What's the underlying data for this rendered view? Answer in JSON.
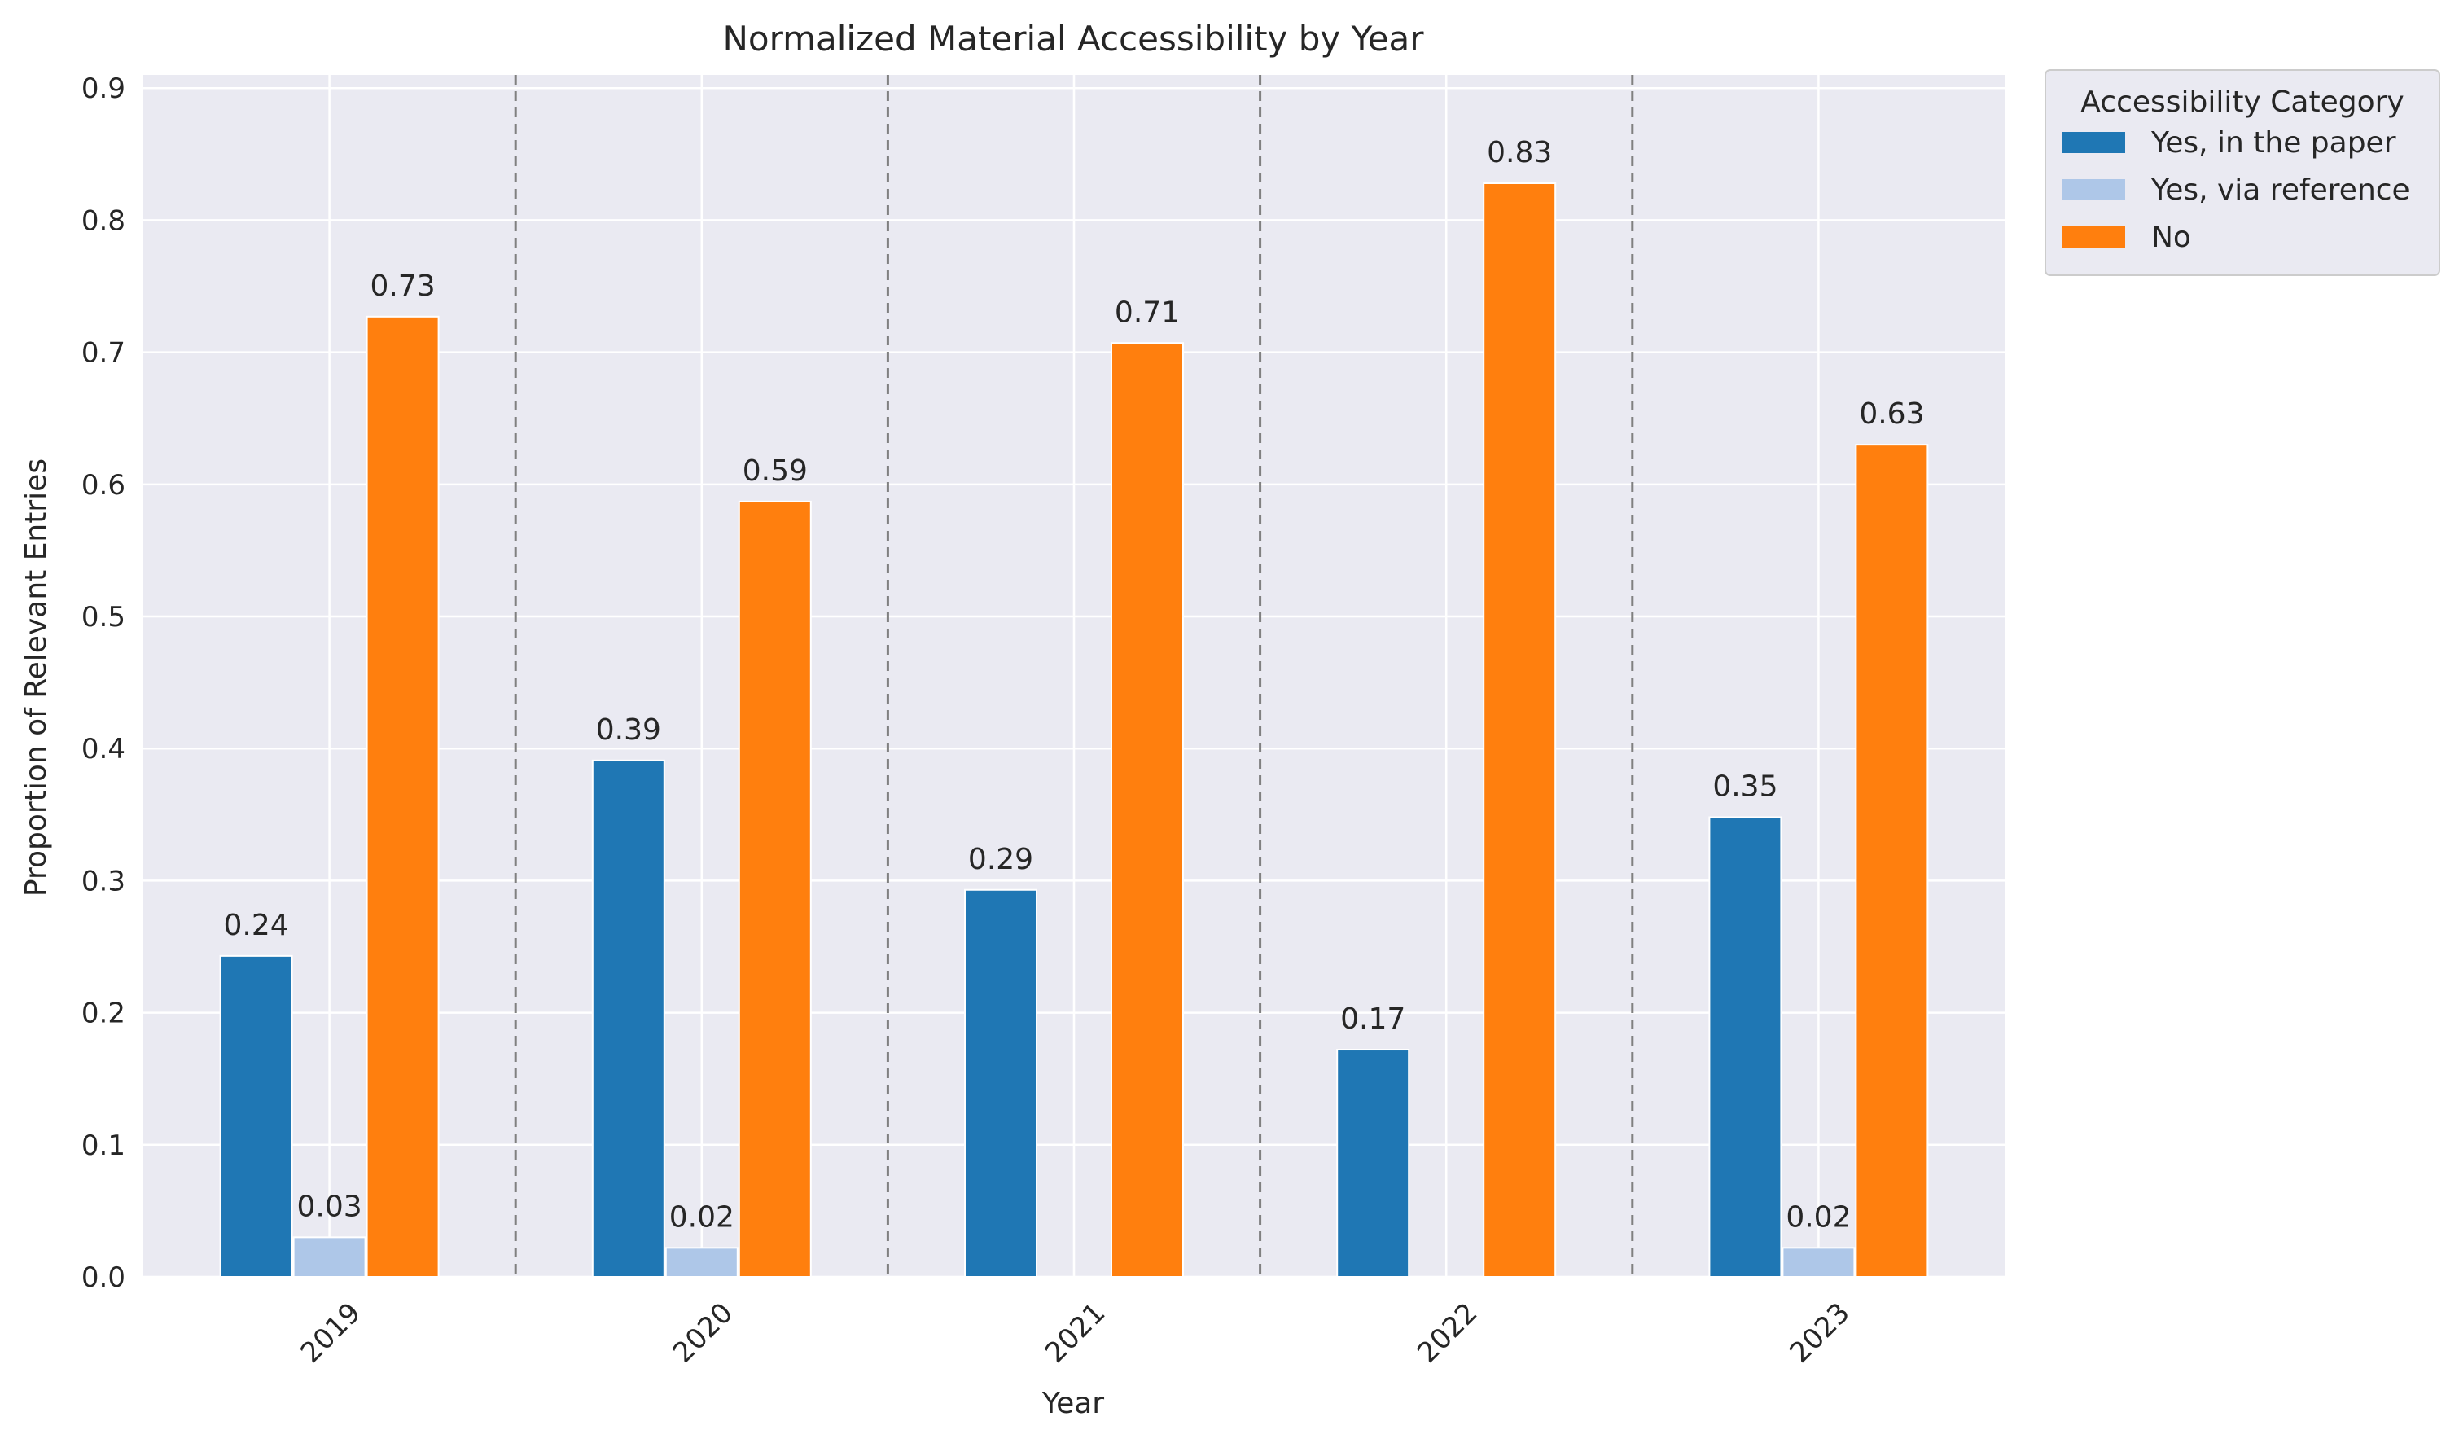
{
  "chart_data": {
    "type": "bar",
    "title": "Normalized Material Accessibility by Year",
    "xlabel": "Year",
    "ylabel": "Proportion of Relevant Entries",
    "categories": [
      "2019",
      "2020",
      "2021",
      "2022",
      "2023"
    ],
    "series": [
      {
        "name": "Yes, in the paper",
        "color": "#1f77b4",
        "values": [
          0.243,
          0.391,
          0.293,
          0.172,
          0.348
        ]
      },
      {
        "name": "Yes, via reference",
        "color": "#aec7e8",
        "values": [
          0.03,
          0.022,
          0.0,
          0.0,
          0.022
        ]
      },
      {
        "name": "No",
        "color": "#ff7f0e",
        "values": [
          0.727,
          0.587,
          0.707,
          0.828,
          0.63
        ]
      }
    ],
    "data_labels": [
      [
        "0.24",
        "0.39",
        "0.29",
        "0.17",
        "0.35"
      ],
      [
        "0.03",
        "0.02",
        null,
        null,
        "0.02"
      ],
      [
        "0.73",
        "0.59",
        "0.71",
        "0.83",
        "0.63"
      ]
    ],
    "ylim": [
      0,
      0.91
    ],
    "yticks": [
      0.0,
      0.1,
      0.2,
      0.3,
      0.4,
      0.5,
      0.6,
      0.7,
      0.8,
      0.9
    ],
    "ytick_labels": [
      "0.0",
      "0.1",
      "0.2",
      "0.3",
      "0.4",
      "0.5",
      "0.6",
      "0.7",
      "0.8",
      "0.9"
    ],
    "grid": true,
    "group_separators": "dashed",
    "legend": {
      "title": "Accessibility Category",
      "placement": "outside-top-right"
    },
    "colors": {
      "plot_background": "#eaeaf2",
      "grid": "#ffffff",
      "separator": "#808080"
    }
  }
}
